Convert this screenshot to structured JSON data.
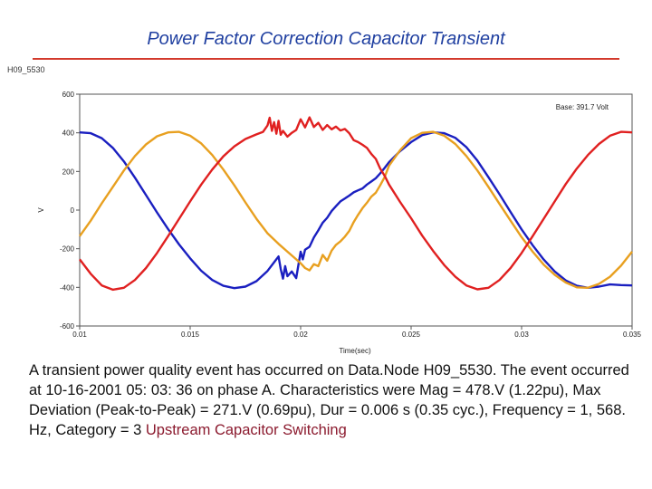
{
  "slide": {
    "title": "Power Factor Correction Capacitor Transient",
    "plot_id": "H09_5530",
    "description_prefix": "A transient power quality event has occurred on Data.Node H09_5530.  The event occurred at 10-16-2001 05: 03: 36 on phase A.  Characteristics were Mag = 478.V (1.22pu), Max Deviation (Peak-to-Peak) = 271.V (0.69pu), Dur = 0.006 s (0.35 cyc.), Frequency = 1, 568. Hz, Category =   3",
    "description_highlight": "Upstream Capacitor Switching"
  },
  "colors": {
    "title": "#1f3fa0",
    "rule": "#d33a2c",
    "phase_blue": "#1a1fc0",
    "phase_orange": "#e8a020",
    "phase_red": "#e02020",
    "highlight": "#8b1a2e"
  },
  "chart_data": {
    "type": "line",
    "xlabel": "Time(sec)",
    "ylabel": "V",
    "annotation": "Base: 391.7 Volt",
    "xlim": [
      0.01,
      0.035
    ],
    "ylim": [
      -600,
      600
    ],
    "x_ticks": [
      0.01,
      0.015,
      0.02,
      0.025,
      0.03,
      0.035
    ],
    "x_tick_labels": [
      "0.01",
      "0.015",
      "0.02",
      "0.025",
      "0.03",
      "0.035"
    ],
    "y_ticks": [
      600,
      400,
      200,
      0,
      -200,
      -400,
      -600
    ],
    "y_tick_labels": [
      "600",
      "400",
      "200",
      "0",
      "-200",
      "-400",
      "-600"
    ],
    "grid": false,
    "series": [
      {
        "color": "#1a1fc0",
        "points": [
          [
            0.01,
            402
          ],
          [
            0.0105,
            398
          ],
          [
            0.011,
            372
          ],
          [
            0.0115,
            322
          ],
          [
            0.012,
            252
          ],
          [
            0.0125,
            168
          ],
          [
            0.013,
            78
          ],
          [
            0.0135,
            -12
          ],
          [
            0.014,
            -98
          ],
          [
            0.0145,
            -178
          ],
          [
            0.015,
            -250
          ],
          [
            0.0155,
            -314
          ],
          [
            0.016,
            -362
          ],
          [
            0.0165,
            -392
          ],
          [
            0.017,
            -404
          ],
          [
            0.0175,
            -396
          ],
          [
            0.018,
            -368
          ],
          [
            0.0185,
            -315
          ],
          [
            0.0188,
            -270
          ],
          [
            0.019,
            -240
          ],
          [
            0.0191,
            -305
          ],
          [
            0.0192,
            -355
          ],
          [
            0.0193,
            -290
          ],
          [
            0.0194,
            -342
          ],
          [
            0.0196,
            -318
          ],
          [
            0.0198,
            -352
          ],
          [
            0.02,
            -215
          ],
          [
            0.0201,
            -255
          ],
          [
            0.0202,
            -205
          ],
          [
            0.0204,
            -190
          ],
          [
            0.0206,
            -142
          ],
          [
            0.0208,
            -105
          ],
          [
            0.021,
            -65
          ],
          [
            0.0212,
            -40
          ],
          [
            0.0214,
            -5
          ],
          [
            0.0216,
            20
          ],
          [
            0.0218,
            45
          ],
          [
            0.022,
            60
          ],
          [
            0.0222,
            75
          ],
          [
            0.0224,
            92
          ],
          [
            0.0226,
            102
          ],
          [
            0.0228,
            112
          ],
          [
            0.023,
            132
          ],
          [
            0.0232,
            148
          ],
          [
            0.0234,
            165
          ],
          [
            0.0236,
            190
          ],
          [
            0.0238,
            218
          ],
          [
            0.024,
            248
          ],
          [
            0.0245,
            305
          ],
          [
            0.025,
            352
          ],
          [
            0.0255,
            388
          ],
          [
            0.026,
            402
          ],
          [
            0.0265,
            398
          ],
          [
            0.027,
            374
          ],
          [
            0.0275,
            326
          ],
          [
            0.028,
            256
          ],
          [
            0.0285,
            170
          ],
          [
            0.029,
            82
          ],
          [
            0.0295,
            -10
          ],
          [
            0.03,
            -100
          ],
          [
            0.0305,
            -182
          ],
          [
            0.031,
            -256
          ],
          [
            0.0315,
            -318
          ],
          [
            0.032,
            -364
          ],
          [
            0.0325,
            -392
          ],
          [
            0.033,
            -402
          ],
          [
            0.0335,
            -396
          ],
          [
            0.034,
            -385
          ],
          [
            0.0345,
            -388
          ],
          [
            0.035,
            -390
          ]
        ]
      },
      {
        "color": "#e8a020",
        "points": [
          [
            0.01,
            -135
          ],
          [
            0.0105,
            -55
          ],
          [
            0.011,
            35
          ],
          [
            0.0115,
            120
          ],
          [
            0.012,
            205
          ],
          [
            0.0125,
            280
          ],
          [
            0.013,
            340
          ],
          [
            0.0135,
            382
          ],
          [
            0.014,
            402
          ],
          [
            0.0145,
            405
          ],
          [
            0.015,
            385
          ],
          [
            0.0155,
            345
          ],
          [
            0.016,
            285
          ],
          [
            0.0165,
            210
          ],
          [
            0.017,
            128
          ],
          [
            0.0175,
            40
          ],
          [
            0.018,
            -45
          ],
          [
            0.0185,
            -120
          ],
          [
            0.019,
            -175
          ],
          [
            0.0195,
            -225
          ],
          [
            0.0198,
            -255
          ],
          [
            0.02,
            -275
          ],
          [
            0.0202,
            -300
          ],
          [
            0.0204,
            -312
          ],
          [
            0.0206,
            -280
          ],
          [
            0.0208,
            -290
          ],
          [
            0.021,
            -232
          ],
          [
            0.0212,
            -262
          ],
          [
            0.0214,
            -210
          ],
          [
            0.0216,
            -180
          ],
          [
            0.0218,
            -162
          ],
          [
            0.022,
            -138
          ],
          [
            0.0222,
            -108
          ],
          [
            0.0224,
            -62
          ],
          [
            0.0226,
            -25
          ],
          [
            0.0228,
            10
          ],
          [
            0.023,
            38
          ],
          [
            0.0232,
            70
          ],
          [
            0.0234,
            90
          ],
          [
            0.0236,
            128
          ],
          [
            0.0238,
            170
          ],
          [
            0.024,
            230
          ],
          [
            0.0245,
            310
          ],
          [
            0.025,
            372
          ],
          [
            0.0255,
            400
          ],
          [
            0.026,
            405
          ],
          [
            0.0265,
            385
          ],
          [
            0.027,
            342
          ],
          [
            0.0275,
            280
          ],
          [
            0.028,
            205
          ],
          [
            0.0285,
            120
          ],
          [
            0.029,
            32
          ],
          [
            0.0295,
            -55
          ],
          [
            0.03,
            -140
          ],
          [
            0.0305,
            -215
          ],
          [
            0.031,
            -282
          ],
          [
            0.0315,
            -335
          ],
          [
            0.032,
            -375
          ],
          [
            0.0325,
            -400
          ],
          [
            0.033,
            -402
          ],
          [
            0.0335,
            -382
          ],
          [
            0.034,
            -345
          ],
          [
            0.0345,
            -288
          ],
          [
            0.035,
            -215
          ]
        ]
      },
      {
        "color": "#e02020",
        "points": [
          [
            0.01,
            -255
          ],
          [
            0.0105,
            -330
          ],
          [
            0.011,
            -390
          ],
          [
            0.0115,
            -412
          ],
          [
            0.012,
            -402
          ],
          [
            0.0125,
            -362
          ],
          [
            0.013,
            -300
          ],
          [
            0.0135,
            -222
          ],
          [
            0.014,
            -135
          ],
          [
            0.0145,
            -45
          ],
          [
            0.015,
            45
          ],
          [
            0.0155,
            132
          ],
          [
            0.016,
            210
          ],
          [
            0.0165,
            278
          ],
          [
            0.017,
            330
          ],
          [
            0.0175,
            368
          ],
          [
            0.018,
            392
          ],
          [
            0.0183,
            405
          ],
          [
            0.0185,
            438
          ],
          [
            0.0186,
            478
          ],
          [
            0.0187,
            410
          ],
          [
            0.0188,
            455
          ],
          [
            0.0189,
            395
          ],
          [
            0.019,
            462
          ],
          [
            0.0191,
            390
          ],
          [
            0.0192,
            410
          ],
          [
            0.0194,
            380
          ],
          [
            0.0196,
            400
          ],
          [
            0.0198,
            415
          ],
          [
            0.02,
            470
          ],
          [
            0.0202,
            428
          ],
          [
            0.0204,
            480
          ],
          [
            0.0206,
            430
          ],
          [
            0.0208,
            452
          ],
          [
            0.021,
            415
          ],
          [
            0.0212,
            440
          ],
          [
            0.0214,
            418
          ],
          [
            0.0216,
            432
          ],
          [
            0.0218,
            412
          ],
          [
            0.022,
            420
          ],
          [
            0.0222,
            398
          ],
          [
            0.0224,
            362
          ],
          [
            0.0226,
            352
          ],
          [
            0.0228,
            338
          ],
          [
            0.023,
            322
          ],
          [
            0.0232,
            290
          ],
          [
            0.0234,
            265
          ],
          [
            0.0236,
            215
          ],
          [
            0.0238,
            178
          ],
          [
            0.024,
            132
          ],
          [
            0.0245,
            42
          ],
          [
            0.025,
            -42
          ],
          [
            0.0255,
            -132
          ],
          [
            0.026,
            -212
          ],
          [
            0.0265,
            -285
          ],
          [
            0.027,
            -345
          ],
          [
            0.0275,
            -390
          ],
          [
            0.028,
            -410
          ],
          [
            0.0285,
            -402
          ],
          [
            0.029,
            -362
          ],
          [
            0.0295,
            -300
          ],
          [
            0.03,
            -222
          ],
          [
            0.0305,
            -135
          ],
          [
            0.031,
            -45
          ],
          [
            0.0315,
            45
          ],
          [
            0.032,
            135
          ],
          [
            0.0325,
            215
          ],
          [
            0.033,
            285
          ],
          [
            0.0335,
            342
          ],
          [
            0.034,
            385
          ],
          [
            0.0345,
            405
          ],
          [
            0.035,
            402
          ]
        ]
      }
    ]
  }
}
